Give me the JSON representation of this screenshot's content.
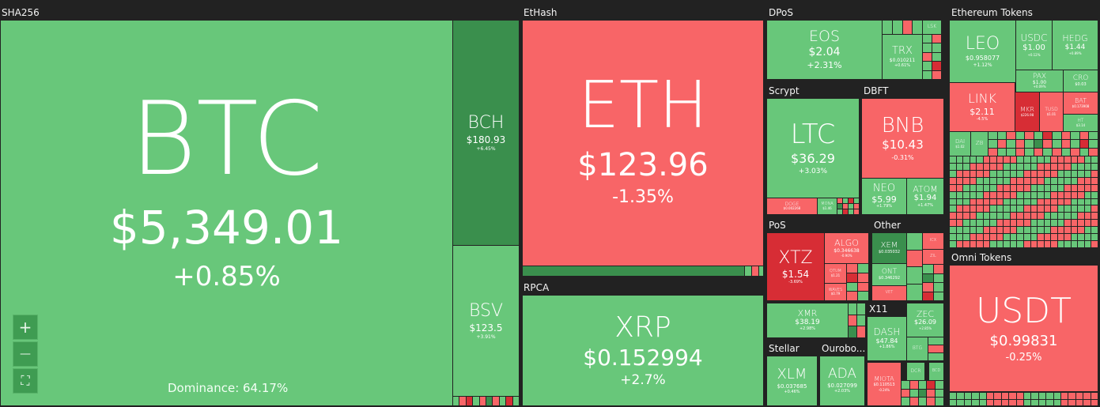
{
  "groups": {
    "sha256": "SHA256",
    "ethhash": "EtHash",
    "dpos": "DPoS",
    "ethereum_tokens": "Ethereum Tokens",
    "scrypt": "Scrypt",
    "dbft": "DBFT",
    "rpca": "RPCA",
    "pos": "PoS",
    "other": "Other",
    "x11": "X11",
    "omni_tokens": "Omni Tokens",
    "stellar": "Stellar",
    "ouroboros": "Ourobo..."
  },
  "coins": {
    "btc": {
      "symbol": "BTC",
      "price": "$5,349.01",
      "change": "+0.85%"
    },
    "bch": {
      "symbol": "BCH",
      "price": "$180.93",
      "change": "+6.45%"
    },
    "bsv": {
      "symbol": "BSV",
      "price": "$123.5",
      "change": "+3.91%"
    },
    "eth": {
      "symbol": "ETH",
      "price": "$123.96",
      "change": "-1.35%"
    },
    "xrp": {
      "symbol": "XRP",
      "price": "$0.152994",
      "change": "+2.7%"
    },
    "eos": {
      "symbol": "EOS",
      "price": "$2.04",
      "change": "+2.31%"
    },
    "trx": {
      "symbol": "TRX",
      "price": "$0.010211",
      "change": "+0.61%"
    },
    "lsk": {
      "symbol": "LSK"
    },
    "ltc": {
      "symbol": "LTC",
      "price": "$36.29",
      "change": "+3.03%"
    },
    "doge": {
      "symbol": "DOGE",
      "price": "$0.002268"
    },
    "mona": {
      "symbol": "MONA",
      "price": "$1.46"
    },
    "bnb": {
      "symbol": "BNB",
      "price": "$10.43",
      "change": "-0.31%"
    },
    "neo": {
      "symbol": "NEO",
      "price": "$5.99",
      "change": "+1.79%"
    },
    "atom": {
      "symbol": "ATOM",
      "price": "$1.94",
      "change": "+1.47%"
    },
    "xtz": {
      "symbol": "XTZ",
      "price": "$1.54",
      "change": "-3.69%"
    },
    "algo": {
      "symbol": "ALGO",
      "price": "$0.346638",
      "change": "-0.90%"
    },
    "qtum": {
      "symbol": "QTUM",
      "price": "$1.21"
    },
    "waves": {
      "symbol": "WAVES",
      "price": "$0.79"
    },
    "xem": {
      "symbol": "XEM",
      "price": "$0.035032"
    },
    "icx": {
      "symbol": "ICX"
    },
    "zil": {
      "symbol": "ZIL"
    },
    "ont": {
      "symbol": "ONT",
      "price": "$0.346292"
    },
    "vet": {
      "symbol": "VET"
    },
    "xmr": {
      "symbol": "XMR",
      "price": "$38.19",
      "change": "+2.98%"
    },
    "dash": {
      "symbol": "DASH",
      "price": "$47.84",
      "change": "+1.86%"
    },
    "zec": {
      "symbol": "ZEC",
      "price": "$26.09",
      "change": "+2.85%"
    },
    "btg": {
      "symbol": "BTG"
    },
    "dcr": {
      "symbol": "DCR"
    },
    "bcd": {
      "symbol": "BCD"
    },
    "miota": {
      "symbol": "MIOTA",
      "price": "$0.110513",
      "change": "-0.24%"
    },
    "xlm": {
      "symbol": "XLM",
      "price": "$0.037685",
      "change": "+0.46%"
    },
    "ada": {
      "symbol": "ADA",
      "price": "$0.027099",
      "change": "+2.03%"
    },
    "leo": {
      "symbol": "LEO",
      "price": "$0.958077",
      "change": "+1.12%"
    },
    "usdc": {
      "symbol": "USDC",
      "price": "$1.00",
      "change": "+0.12%"
    },
    "hedg": {
      "symbol": "HEDG",
      "price": "$1.44",
      "change": "+0.89%"
    },
    "pax": {
      "symbol": "PAX",
      "price": "$1.00",
      "change": "+0.09%"
    },
    "cro": {
      "symbol": "CRO",
      "price": "$0.03"
    },
    "link": {
      "symbol": "LINK",
      "price": "$2.11",
      "change": "-4.5%"
    },
    "mkr": {
      "symbol": "MKR",
      "price": "$226.98"
    },
    "tusd": {
      "symbol": "TUSD",
      "price": "$1.01"
    },
    "bat": {
      "symbol": "BAT",
      "price": "$0.173908"
    },
    "ht": {
      "symbol": "HT",
      "price": "$3.14"
    },
    "dai": {
      "symbol": "DAI",
      "price": "$1.02"
    },
    "zb": {
      "symbol": "ZB"
    },
    "usdt": {
      "symbol": "USDT",
      "price": "$0.99831",
      "change": "-0.25%"
    }
  },
  "dominance": "Dominance: 64.17%",
  "controls": {
    "zoom_in": "+",
    "zoom_out": "—",
    "fullscreen": "⛶"
  }
}
